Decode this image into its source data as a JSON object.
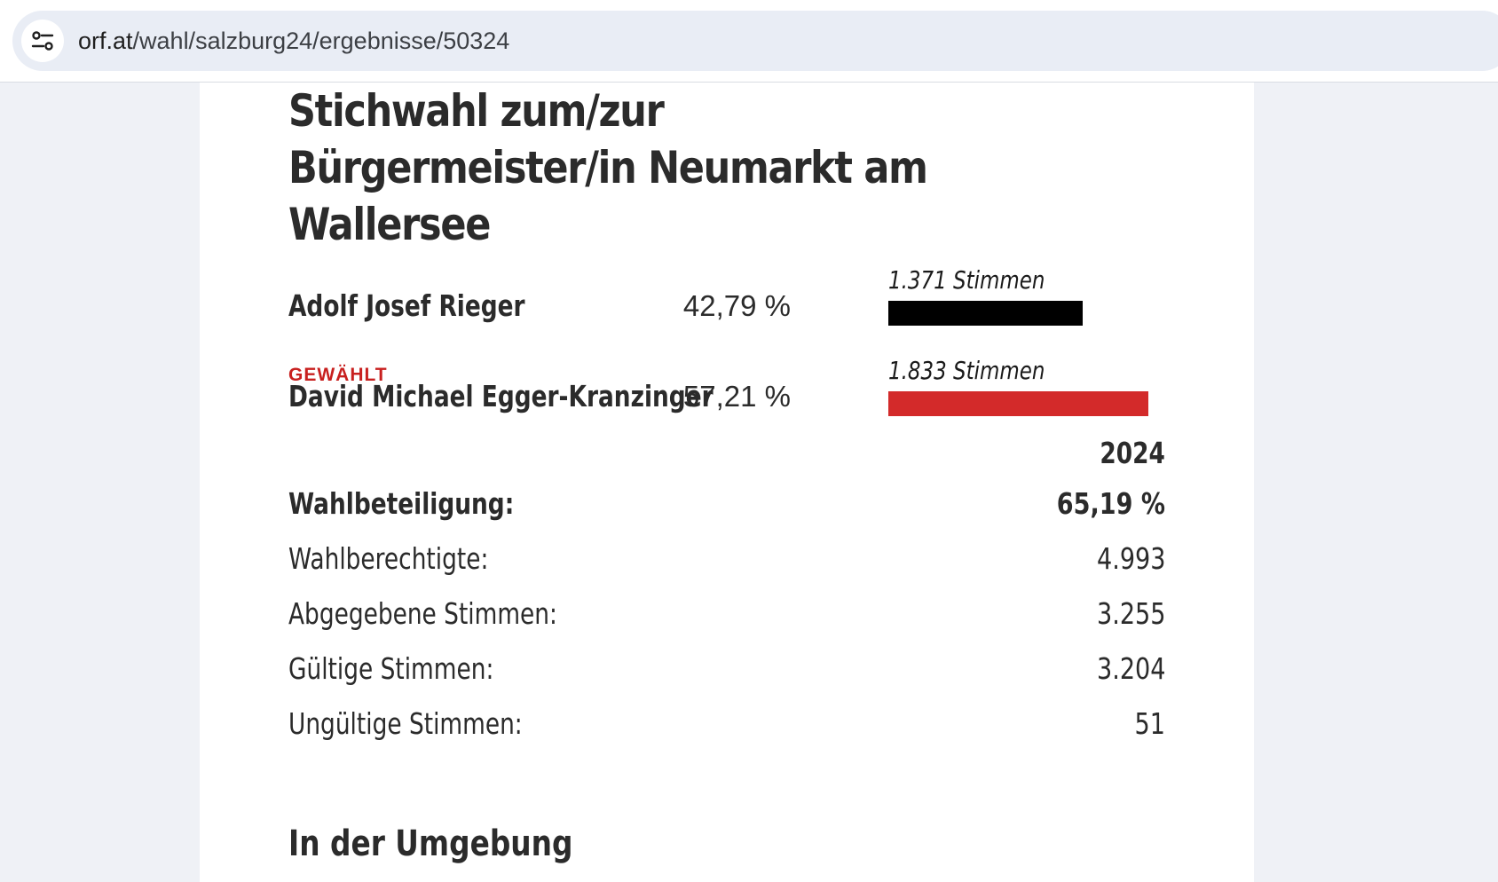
{
  "browser": {
    "url_host": "orf.at",
    "url_path": "/wahl/salzburg24/ergebnisse/50324",
    "site_icon": "tune-settings-icon"
  },
  "page": {
    "title": "Stichwahl zum/zur Bürgermeister/in Neumarkt am Wallersee"
  },
  "candidates": [
    {
      "name": "Adolf Josef Rieger",
      "percent": "42,79 %",
      "votes_label": "1.371 Stimmen",
      "share": 0.4279,
      "bar_color": "#000000",
      "elected": false,
      "elected_label": ""
    },
    {
      "name": "David Michael Egger-Kranzinger",
      "percent": "57,21 %",
      "votes_label": "1.833 Stimmen",
      "share": 0.5721,
      "bar_color": "#d32a2a",
      "elected": true,
      "elected_label": "GEWÄHLT"
    }
  ],
  "stats": {
    "year": "2024",
    "rows": [
      {
        "label": "Wahlbeteiligung:",
        "value": "65,19 %"
      },
      {
        "label": "Wahlberechtigte:",
        "value": "4.993"
      },
      {
        "label": "Abgegebene Stimmen:",
        "value": "3.255"
      },
      {
        "label": "Gültige Stimmen:",
        "value": "3.204"
      },
      {
        "label": "Ungültige Stimmen:",
        "value": "51"
      }
    ]
  },
  "section_heading": "In der Umgebung",
  "colors": {
    "accent_red": "#c8201f",
    "bar_red": "#d32a2a",
    "bar_black": "#000000"
  }
}
